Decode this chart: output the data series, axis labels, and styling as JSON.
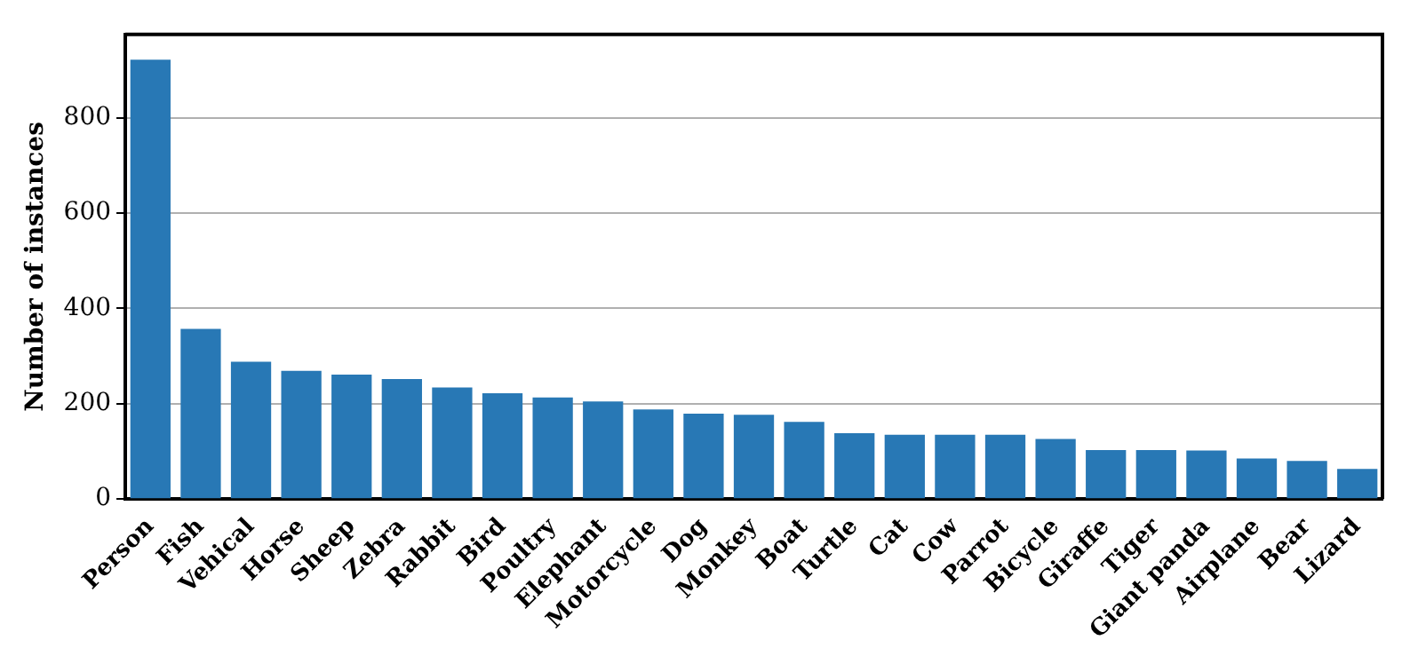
{
  "chart_data": {
    "type": "bar",
    "ylabel": "Number of instances",
    "categories": [
      "Person",
      "Fish",
      "Vehical",
      "Horse",
      "Sheep",
      "Zebra",
      "Rabbit",
      "Bird",
      "Poultry",
      "Elephant",
      "Motorcycle",
      "Dog",
      "Monkey",
      "Boat",
      "Turtle",
      "Cat",
      "Cow",
      "Parrot",
      "Bicycle",
      "Giraffe",
      "Tiger",
      "Giant panda",
      "Airplane",
      "Bear",
      "Lizard"
    ],
    "values": [
      922,
      357,
      288,
      269,
      261,
      252,
      234,
      222,
      213,
      205,
      188,
      179,
      177,
      162,
      138,
      135,
      135,
      135,
      126,
      103,
      103,
      102,
      85,
      80,
      63
    ],
    "color": "#2878b5",
    "ylim": [
      0,
      975
    ],
    "yticks": [
      0,
      200,
      400,
      600,
      800
    ],
    "grid": "y"
  }
}
